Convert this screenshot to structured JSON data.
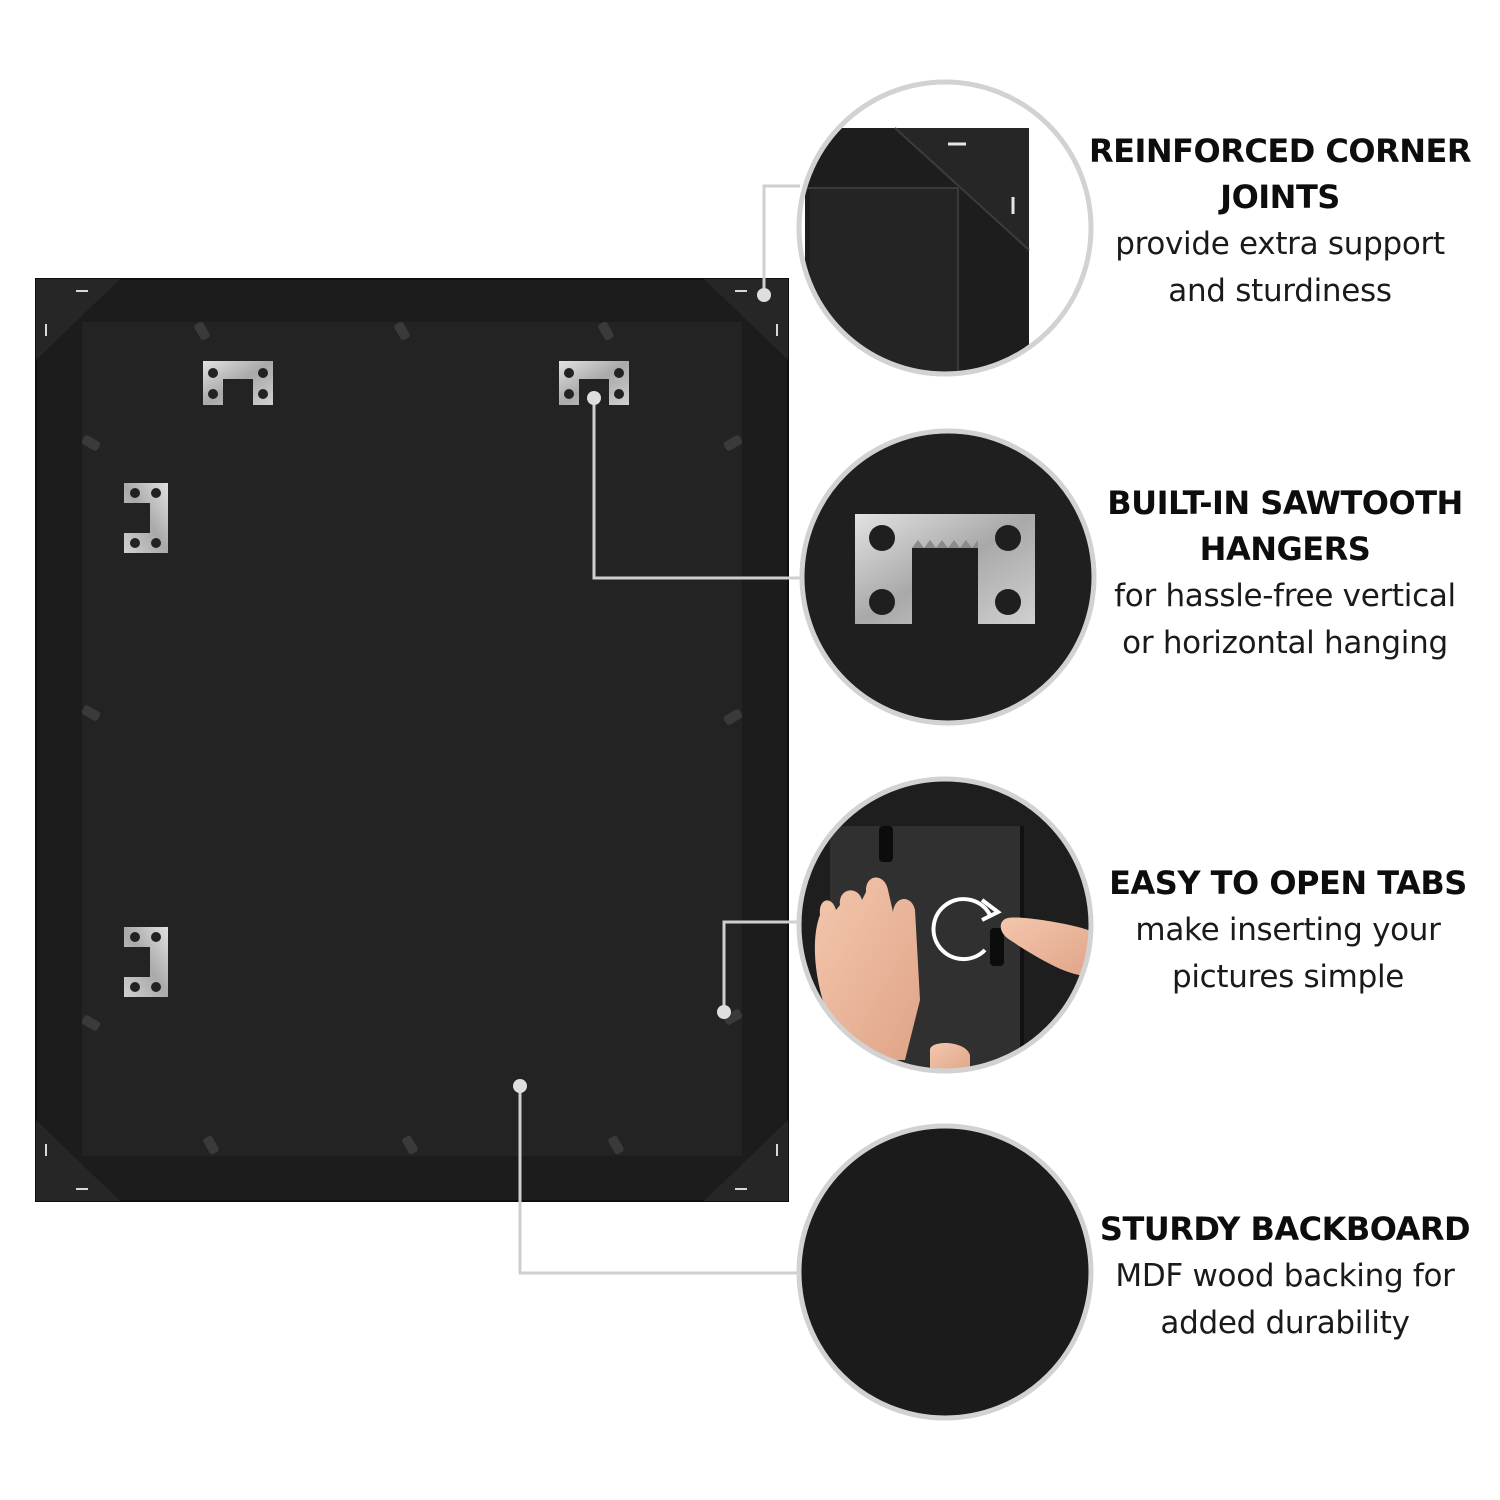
{
  "features": [
    {
      "title_line1": "REINFORCED CORNER",
      "title_line2": "JOINTS",
      "desc_line1": "provide extra support",
      "desc_line2": "and sturdiness",
      "icon": "corner-joint-closeup"
    },
    {
      "title_line1": "BUILT-IN SAWTOOTH",
      "title_line2": "HANGERS",
      "desc_line1": "for hassle-free vertical",
      "desc_line2": "or horizontal hanging",
      "icon": "sawtooth-hanger-closeup"
    },
    {
      "title_line1": "EASY TO OPEN TABS",
      "title_line2": "",
      "desc_line1": "make inserting your",
      "desc_line2": "pictures simple",
      "icon": "turn-tab-closeup"
    },
    {
      "title_line1": "STURDY BACKBOARD",
      "title_line2": "",
      "desc_line1": "MDF wood backing for",
      "desc_line2": "added durability",
      "icon": "backboard-closeup"
    }
  ],
  "colors": {
    "background": "#ffffff",
    "frame": "#1c1c1c",
    "backboard": "#232323",
    "hardware": "#b8b8b8",
    "callout_line": "#cfcfcf",
    "circle_border": "#d2d2d2"
  }
}
